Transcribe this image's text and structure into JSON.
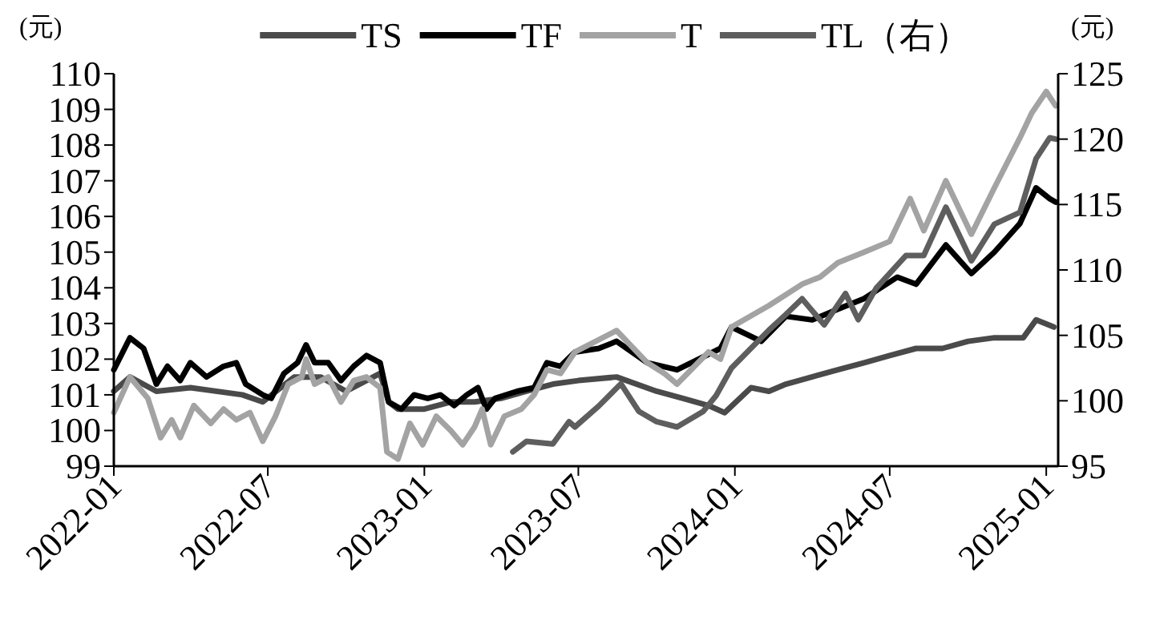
{
  "chart_data": {
    "type": "line",
    "ylabel": "(元)",
    "y2label": "(元)",
    "legend": "top",
    "grid": false,
    "xlim": [
      "2022-01-01",
      "2025-01-15"
    ],
    "xticks": [
      "2022-01",
      "2022-07",
      "2023-01",
      "2023-07",
      "2024-01",
      "2024-07",
      "2025-01"
    ],
    "ylim": [
      99,
      110
    ],
    "yticks": [
      99,
      100,
      101,
      102,
      103,
      104,
      105,
      106,
      107,
      108,
      109,
      110
    ],
    "y2lim": [
      95,
      125
    ],
    "y2ticks": [
      95,
      100,
      105,
      110,
      115,
      120,
      125
    ],
    "series": [
      {
        "name": "TS",
        "color": "#4a4a4a",
        "x": [
          "2022-01-01",
          "2022-01-20",
          "2022-02-20",
          "2022-04-01",
          "2022-06-01",
          "2022-06-25",
          "2022-08-01",
          "2022-09-01",
          "2022-10-01",
          "2022-11-10",
          "2022-11-20",
          "2022-12-01",
          "2023-01-01",
          "2023-02-01",
          "2023-03-01",
          "2023-04-01",
          "2023-05-01",
          "2023-06-01",
          "2023-07-01",
          "2023-08-15",
          "2023-10-01",
          "2023-11-01",
          "2023-12-01",
          "2023-12-20",
          "2024-01-20",
          "2024-02-10",
          "2024-03-01",
          "2024-05-01",
          "2024-06-01",
          "2024-07-01",
          "2024-08-01",
          "2024-09-01",
          "2024-10-01",
          "2024-11-01",
          "2024-12-05",
          "2024-12-20",
          "2025-01-10"
        ],
        "values": [
          101.1,
          101.5,
          101.1,
          101.2,
          101.0,
          100.8,
          101.5,
          101.5,
          101.1,
          101.6,
          100.8,
          100.6,
          100.6,
          100.8,
          100.8,
          100.9,
          101.1,
          101.3,
          101.4,
          101.5,
          101.1,
          100.9,
          100.7,
          100.5,
          101.2,
          101.1,
          101.3,
          101.7,
          101.9,
          102.1,
          102.3,
          102.3,
          102.5,
          102.6,
          102.6,
          103.1,
          102.9
        ]
      },
      {
        "name": "TF",
        "color": "#000000",
        "x": [
          "2022-01-01",
          "2022-01-20",
          "2022-02-05",
          "2022-02-20",
          "2022-03-05",
          "2022-03-20",
          "2022-04-01",
          "2022-04-20",
          "2022-05-10",
          "2022-05-25",
          "2022-06-05",
          "2022-06-25",
          "2022-07-05",
          "2022-07-20",
          "2022-08-05",
          "2022-08-15",
          "2022-08-25",
          "2022-09-10",
          "2022-09-25",
          "2022-10-10",
          "2022-10-25",
          "2022-11-10",
          "2022-11-20",
          "2022-12-05",
          "2022-12-20",
          "2023-01-05",
          "2023-01-20",
          "2023-02-05",
          "2023-02-20",
          "2023-03-05",
          "2023-03-15",
          "2023-03-25",
          "2023-04-20",
          "2023-05-10",
          "2023-05-25",
          "2023-06-10",
          "2023-06-27",
          "2023-07-25",
          "2023-08-15",
          "2023-09-20",
          "2023-10-25",
          "2023-12-15",
          "2023-12-28",
          "2024-02-01",
          "2024-03-01",
          "2024-04-01",
          "2024-05-01",
          "2024-06-01",
          "2024-07-10",
          "2024-08-01",
          "2024-09-05",
          "2024-10-05",
          "2024-11-01",
          "2024-12-01",
          "2024-12-20",
          "2025-01-05",
          "2025-01-12"
        ],
        "values": [
          101.7,
          102.6,
          102.3,
          101.3,
          101.8,
          101.4,
          101.9,
          101.5,
          101.8,
          101.9,
          101.3,
          101.0,
          100.9,
          101.6,
          101.9,
          102.4,
          101.9,
          101.9,
          101.4,
          101.8,
          102.1,
          101.9,
          100.8,
          100.6,
          101.0,
          100.9,
          101.0,
          100.7,
          101.0,
          101.2,
          100.6,
          100.9,
          101.1,
          101.2,
          101.9,
          101.8,
          102.2,
          102.3,
          102.5,
          101.9,
          101.7,
          102.3,
          102.9,
          102.5,
          103.2,
          103.1,
          103.4,
          103.7,
          104.3,
          104.1,
          105.2,
          104.4,
          105.0,
          105.8,
          106.8,
          106.5,
          106.4
        ]
      },
      {
        "name": "T",
        "color": "#a3a3a3",
        "x": [
          "2022-01-01",
          "2022-01-20",
          "2022-02-10",
          "2022-02-25",
          "2022-03-10",
          "2022-03-20",
          "2022-04-05",
          "2022-04-25",
          "2022-05-10",
          "2022-05-25",
          "2022-06-10",
          "2022-06-25",
          "2022-07-10",
          "2022-07-25",
          "2022-08-10",
          "2022-08-15",
          "2022-08-25",
          "2022-09-10",
          "2022-09-25",
          "2022-10-10",
          "2022-10-25",
          "2022-11-10",
          "2022-11-18",
          "2022-12-01",
          "2022-12-15",
          "2022-12-30",
          "2023-01-15",
          "2023-02-01",
          "2023-02-15",
          "2023-03-01",
          "2023-03-10",
          "2023-03-20",
          "2023-04-05",
          "2023-04-25",
          "2023-05-10",
          "2023-05-25",
          "2023-06-10",
          "2023-06-27",
          "2023-08-15",
          "2023-09-20",
          "2023-10-10",
          "2023-10-25",
          "2023-12-01",
          "2023-12-15",
          "2023-12-28",
          "2024-02-10",
          "2024-03-20",
          "2024-04-10",
          "2024-05-01",
          "2024-06-01",
          "2024-07-01",
          "2024-07-25",
          "2024-08-10",
          "2024-09-05",
          "2024-10-05",
          "2024-11-01",
          "2024-12-01",
          "2024-12-15",
          "2025-01-01",
          "2025-01-12"
        ],
        "values": [
          100.5,
          101.5,
          100.9,
          99.8,
          100.3,
          99.8,
          100.7,
          100.2,
          100.6,
          100.3,
          100.5,
          99.7,
          100.4,
          101.3,
          101.5,
          102.0,
          101.3,
          101.5,
          100.8,
          101.4,
          101.5,
          101.2,
          99.4,
          99.2,
          100.2,
          99.6,
          100.4,
          100.0,
          99.6,
          100.1,
          100.6,
          99.6,
          100.4,
          100.6,
          101.0,
          101.7,
          101.6,
          102.2,
          102.8,
          101.9,
          101.6,
          101.3,
          102.2,
          102.0,
          102.9,
          103.5,
          104.1,
          104.3,
          104.7,
          105.0,
          105.3,
          106.5,
          105.6,
          107.0,
          105.5,
          106.8,
          108.2,
          108.9,
          109.5,
          109.1
        ]
      },
      {
        "name": "TL（右）",
        "color": "#5e5e5e",
        "axis": "y2",
        "x": [
          "2023-04-15",
          "2023-05-01",
          "2023-06-01",
          "2023-06-20",
          "2023-06-27",
          "2023-07-25",
          "2023-08-20",
          "2023-09-10",
          "2023-10-01",
          "2023-10-25",
          "2023-11-25",
          "2023-12-10",
          "2023-12-28",
          "2024-02-10",
          "2024-03-01",
          "2024-03-20",
          "2024-04-15",
          "2024-05-10",
          "2024-05-25",
          "2024-06-15",
          "2024-07-20",
          "2024-08-10",
          "2024-09-05",
          "2024-10-05",
          "2024-11-01",
          "2024-12-01",
          "2024-12-20",
          "2025-01-05",
          "2025-01-12"
        ],
        "values": [
          96.1,
          96.9,
          96.7,
          98.4,
          98.0,
          99.6,
          101.3,
          99.2,
          98.4,
          98.0,
          99.2,
          100.4,
          102.5,
          105.4,
          106.6,
          107.8,
          105.8,
          108.2,
          106.2,
          108.6,
          111.1,
          111.1,
          114.8,
          110.7,
          113.5,
          114.4,
          118.5,
          120.1,
          120.0
        ]
      }
    ]
  }
}
